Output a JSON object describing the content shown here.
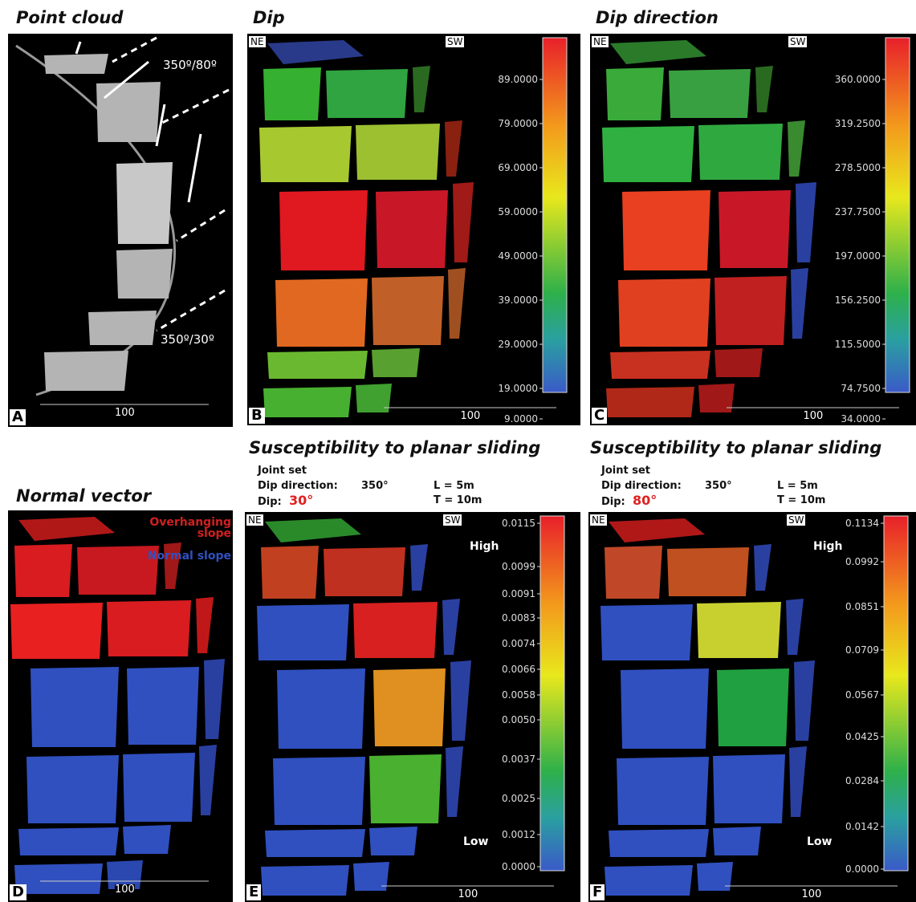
{
  "panels": [
    {
      "letter": "A",
      "title": "Point cloud",
      "annotations": [
        "350º/80º",
        "350º/30º"
      ],
      "scale": "100"
    },
    {
      "letter": "B",
      "title": "Dip",
      "ne": "NE",
      "sw": "SW",
      "scale": "100",
      "colorbar_ticks": [
        "89.0000",
        "79.0000",
        "69.0000",
        "59.0000",
        "49.0000",
        "39.0000",
        "29.0000",
        "19.0000",
        "9.0000"
      ]
    },
    {
      "letter": "C",
      "title": "Dip direction",
      "ne": "NE",
      "sw": "SW",
      "scale": "100",
      "colorbar_ticks": [
        "360.0000",
        "319.2500",
        "278.5000",
        "237.7500",
        "197.0000",
        "156.2500",
        "115.5000",
        "74.7500",
        "34.0000"
      ]
    },
    {
      "letter": "D",
      "title": "Normal vector",
      "legend": [
        "Overhanging slope",
        "Normal slope"
      ],
      "scale": "100"
    },
    {
      "letter": "E",
      "title": "Susceptibility to planar sliding",
      "ne": "NE",
      "sw": "SW",
      "scale": "100",
      "joint_set": {
        "heading": "Joint set",
        "dip_direction_label": "Dip direction:",
        "dip_direction": "350°",
        "dip_label": "Dip:",
        "dip": "30°",
        "length": "L = 5m",
        "thickness": "T = 10m"
      },
      "high": "High",
      "low": "Low",
      "colorbar_ticks": [
        "0.0115",
        "0.0099",
        "0.0091",
        "0.0083",
        "0.0074",
        "0.0066",
        "0.0058",
        "0.0050",
        "0.0037",
        "0.0025",
        "0.0012",
        "0.0000"
      ]
    },
    {
      "letter": "F",
      "title": "Susceptibility to planar sliding",
      "ne": "NE",
      "sw": "SW",
      "scale": "100",
      "joint_set": {
        "heading": "Joint set",
        "dip_direction_label": "Dip direction:",
        "dip_direction": "350°",
        "dip_label": "Dip:",
        "dip": "80°",
        "length": "L = 5m",
        "thickness": "T = 10m"
      },
      "high": "High",
      "low": "Low",
      "colorbar_ticks": [
        "0.1134",
        "0.0992",
        "0.0851",
        "0.0709",
        "0.0567",
        "0.0425",
        "0.0284",
        "0.0142",
        "0.0000"
      ]
    }
  ]
}
